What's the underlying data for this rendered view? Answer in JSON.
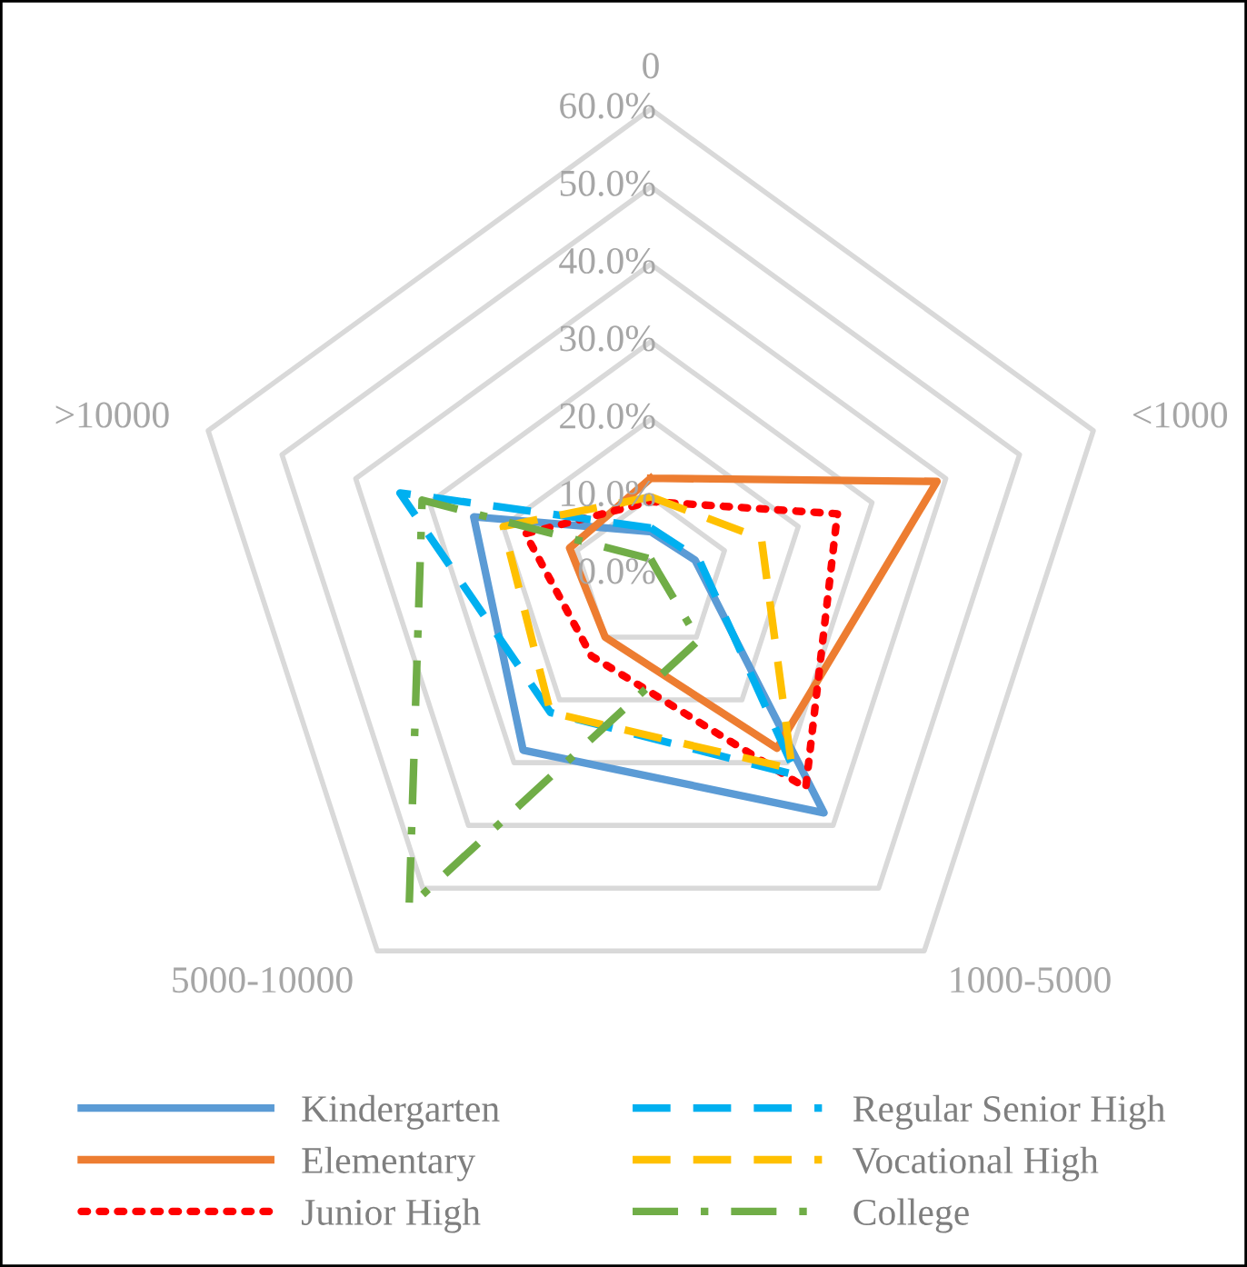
{
  "chart_data": {
    "type": "radar",
    "categories": [
      "0",
      "<1000",
      "1000-5000",
      "5000-10000",
      ">10000"
    ],
    "ylim": [
      0,
      60
    ],
    "yticks": [
      {
        "value": 0,
        "label": "0.0%"
      },
      {
        "value": 10,
        "label": "10.0%"
      },
      {
        "value": 20,
        "label": "20.0%"
      },
      {
        "value": 30,
        "label": "30.0%"
      },
      {
        "value": 40,
        "label": "40.0%"
      },
      {
        "value": 50,
        "label": "50.0%"
      },
      {
        "value": 60,
        "label": "60.0%"
      }
    ],
    "grid": true,
    "legend": "bottom",
    "series": [
      {
        "name": "Kindergarten",
        "color": "#5b9bd5",
        "line_style": "solid",
        "values": [
          5.5,
          6,
          38,
          28,
          24
        ]
      },
      {
        "name": "Elementary",
        "color": "#ed7d31",
        "line_style": "solid",
        "values": [
          12.4,
          38.8,
          27.7,
          10,
          11
        ]
      },
      {
        "name": "Junior High",
        "color": "#ff0000",
        "line_style": "dotted",
        "values": [
          9.4,
          25.3,
          34,
          13,
          17
        ]
      },
      {
        "name": "Regular Senior High",
        "color": "#00b0f0",
        "line_style": "dashed",
        "values": [
          6,
          6.5,
          32,
          22,
          34
        ]
      },
      {
        "name": "Vocational High",
        "color": "#ffc000",
        "line_style": "dashed",
        "values": [
          10,
          15,
          31,
          22,
          20
        ]
      },
      {
        "name": "College",
        "color": "#70ad47",
        "line_style": "dashdot",
        "values": [
          2,
          1,
          10.5,
          53,
          31
        ]
      }
    ]
  }
}
